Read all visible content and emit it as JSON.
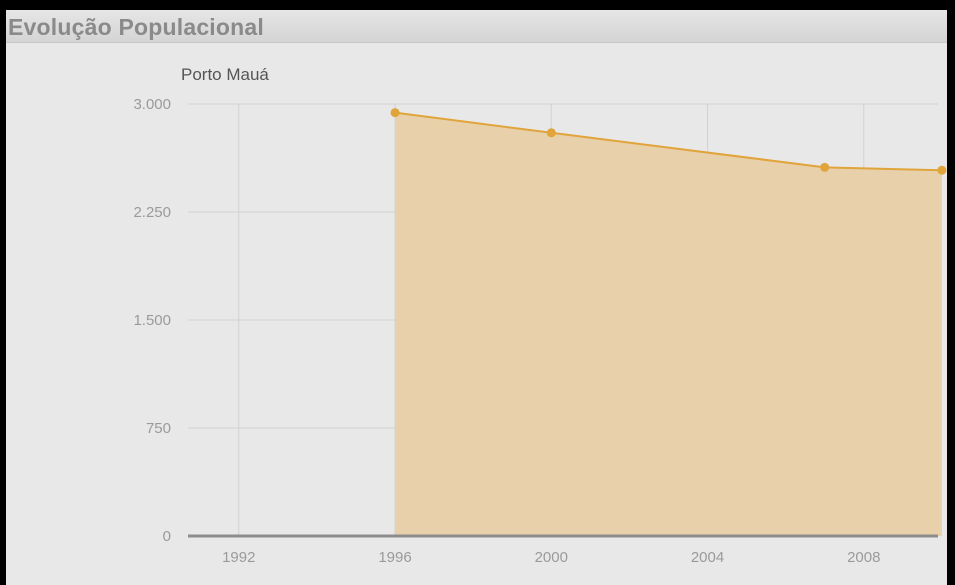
{
  "panel": {
    "title": "Evolução Populacional"
  },
  "colors": {
    "line": "#e0a43a",
    "area": "#e8cfa6",
    "grid": "#d2d2d2",
    "axis": "#8c8c8c",
    "background": "#e8e8e8"
  },
  "chart_data": {
    "type": "area",
    "title": "Porto Mauá",
    "xlabel": "",
    "ylabel": "",
    "x_ticks": [
      1992,
      1996,
      2000,
      2004,
      2008
    ],
    "y_ticks": [
      0,
      750,
      1500,
      2250,
      3000
    ],
    "y_tick_labels": [
      "0",
      "750",
      "1.500",
      "2.250",
      "3.000"
    ],
    "xlim": [
      1990.7,
      2009.9
    ],
    "ylim": [
      0,
      3000
    ],
    "grid": true,
    "legend": "none",
    "series": [
      {
        "x": [
          1996,
          2000,
          2007,
          2010
        ],
        "values": [
          2940,
          2800,
          2560,
          2540
        ]
      }
    ]
  }
}
